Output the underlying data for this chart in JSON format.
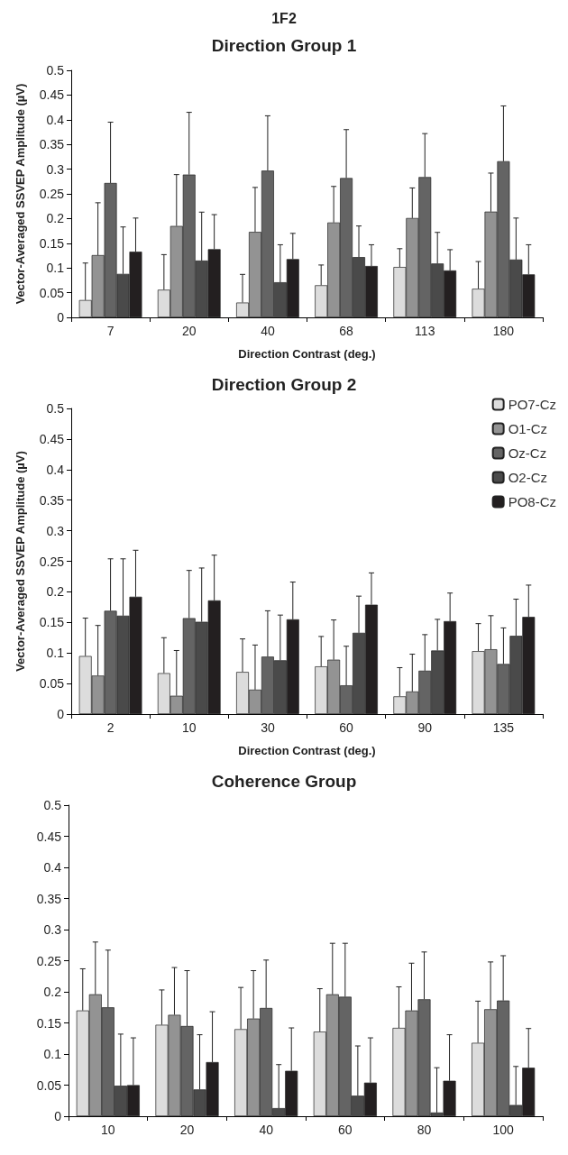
{
  "chart_data": [
    {
      "type": "bar",
      "title": "Direction Group 1",
      "annotations": [
        "1F2"
      ],
      "xlabel": "Direction Contrast (deg.)",
      "ylabel": "Vector-Averaged SSVEP Amplitude (µV)",
      "categories": [
        "7",
        "20",
        "40",
        "68",
        "113",
        "180"
      ],
      "ylim": [
        0,
        0.5
      ],
      "yticks": [
        0,
        0.05,
        0.1,
        0.15,
        0.2,
        0.25,
        0.3,
        0.35,
        0.4,
        0.45,
        0.5
      ],
      "grid": false,
      "legend": false,
      "series": [
        {
          "color": "#dcdcdc",
          "values": [
            0.035,
            0.056,
            0.03,
            0.065,
            0.102,
            0.058
          ],
          "errors": [
            [
              0.035,
              0.11
            ],
            [
              0.056,
              0.127
            ],
            [
              0.03,
              0.087
            ],
            [
              0.065,
              0.106
            ],
            [
              0.102,
              0.139
            ],
            [
              0.058,
              0.113
            ]
          ]
        },
        {
          "color": "#939393",
          "values": [
            0.126,
            0.185,
            0.173,
            0.192,
            0.201,
            0.214
          ],
          "errors": [
            [
              0.126,
              0.232
            ],
            [
              0.185,
              0.289
            ],
            [
              0.173,
              0.263
            ],
            [
              0.192,
              0.265
            ],
            [
              0.201,
              0.262
            ],
            [
              0.214,
              0.292
            ]
          ]
        },
        {
          "color": "#646464",
          "values": [
            0.272,
            0.289,
            0.297,
            0.282,
            0.284,
            0.316
          ],
          "errors": [
            [
              0.272,
              0.395
            ],
            [
              0.289,
              0.415
            ],
            [
              0.297,
              0.408
            ],
            [
              0.282,
              0.38
            ],
            [
              0.284,
              0.372
            ],
            [
              0.316,
              0.428
            ]
          ]
        },
        {
          "color": "#4a4a4a",
          "values": [
            0.088,
            0.115,
            0.071,
            0.122,
            0.109,
            0.117
          ],
          "errors": [
            [
              0.088,
              0.183
            ],
            [
              0.115,
              0.213
            ],
            [
              0.071,
              0.147
            ],
            [
              0.122,
              0.185
            ],
            [
              0.109,
              0.172
            ],
            [
              0.117,
              0.201
            ]
          ]
        },
        {
          "color": "#231f20",
          "values": [
            0.133,
            0.138,
            0.118,
            0.104,
            0.095,
            0.087
          ],
          "errors": [
            [
              0.133,
              0.201
            ],
            [
              0.138,
              0.208
            ],
            [
              0.118,
              0.17
            ],
            [
              0.104,
              0.147
            ],
            [
              0.095,
              0.137
            ],
            [
              0.087,
              0.147
            ]
          ]
        }
      ]
    },
    {
      "type": "bar",
      "title": "Direction Group 2",
      "xlabel": "Direction Contrast (deg.)",
      "ylabel": "Vector-Averaged SSVEP Amplitude (µV)",
      "categories": [
        "2",
        "10",
        "30",
        "60",
        "90",
        "135"
      ],
      "ylim": [
        0,
        0.5
      ],
      "yticks": [
        0,
        0.05,
        0.1,
        0.15,
        0.2,
        0.25,
        0.3,
        0.35,
        0.4,
        0.45,
        0.5
      ],
      "grid": false,
      "legend": "top right",
      "series": [
        {
          "name": "PO7-Cz",
          "color": "#dcdcdc",
          "values": [
            0.095,
            0.067,
            0.069,
            0.078,
            0.029,
            0.103
          ],
          "errors": [
            [
              0.095,
              0.157
            ],
            [
              0.067,
              0.125
            ],
            [
              0.069,
              0.123
            ],
            [
              0.078,
              0.127
            ],
            [
              0.029,
              0.076
            ],
            [
              0.103,
              0.148
            ]
          ]
        },
        {
          "name": "O1-Cz",
          "color": "#939393",
          "values": [
            0.063,
            0.03,
            0.04,
            0.089,
            0.037,
            0.106
          ],
          "errors": [
            [
              0.063,
              0.145
            ],
            [
              0.03,
              0.104
            ],
            [
              0.04,
              0.113
            ],
            [
              0.089,
              0.154
            ],
            [
              0.037,
              0.098
            ],
            [
              0.106,
              0.161
            ]
          ]
        },
        {
          "name": "Oz-Cz",
          "color": "#646464",
          "values": [
            0.169,
            0.157,
            0.094,
            0.047,
            0.071,
            0.082
          ],
          "errors": [
            [
              0.169,
              0.254
            ],
            [
              0.157,
              0.235
            ],
            [
              0.094,
              0.169
            ],
            [
              0.047,
              0.111
            ],
            [
              0.071,
              0.13
            ],
            [
              0.082,
              0.141
            ]
          ]
        },
        {
          "name": "O2-Cz",
          "color": "#4a4a4a",
          "values": [
            0.161,
            0.151,
            0.088,
            0.133,
            0.104,
            0.128
          ],
          "errors": [
            [
              0.161,
              0.254
            ],
            [
              0.151,
              0.239
            ],
            [
              0.088,
              0.162
            ],
            [
              0.133,
              0.193
            ],
            [
              0.104,
              0.155
            ],
            [
              0.128,
              0.188
            ]
          ]
        },
        {
          "name": "PO8-Cz",
          "color": "#231f20",
          "values": [
            0.192,
            0.186,
            0.155,
            0.179,
            0.152,
            0.159
          ],
          "errors": [
            [
              0.192,
              0.268
            ],
            [
              0.186,
              0.26
            ],
            [
              0.155,
              0.216
            ],
            [
              0.179,
              0.231
            ],
            [
              0.152,
              0.198
            ],
            [
              0.159,
              0.211
            ]
          ]
        }
      ]
    },
    {
      "type": "bar",
      "title": "Coherence Group",
      "categories": [
        "10",
        "20",
        "40",
        "60",
        "80",
        "100"
      ],
      "ylim": [
        0,
        0.5
      ],
      "yticks": [
        0,
        0.05,
        0.1,
        0.15,
        0.2,
        0.25,
        0.3,
        0.35,
        0.4,
        0.45,
        0.5
      ],
      "grid": false,
      "legend": false,
      "series": [
        {
          "color": "#dcdcdc",
          "values": [
            0.17,
            0.147,
            0.14,
            0.136,
            0.142,
            0.118
          ],
          "errors": [
            [
              0.17,
              0.237
            ],
            [
              0.147,
              0.203
            ],
            [
              0.14,
              0.207
            ],
            [
              0.136,
              0.205
            ],
            [
              0.142,
              0.208
            ],
            [
              0.118,
              0.185
            ]
          ]
        },
        {
          "color": "#939393",
          "values": [
            0.196,
            0.163,
            0.157,
            0.196,
            0.17,
            0.172
          ],
          "errors": [
            [
              0.196,
              0.28
            ],
            [
              0.163,
              0.239
            ],
            [
              0.157,
              0.234
            ],
            [
              0.196,
              0.278
            ],
            [
              0.17,
              0.246
            ],
            [
              0.172,
              0.248
            ]
          ]
        },
        {
          "color": "#646464",
          "values": [
            0.175,
            0.145,
            0.174,
            0.192,
            0.188,
            0.186
          ],
          "errors": [
            [
              0.175,
              0.267
            ],
            [
              0.145,
              0.234
            ],
            [
              0.174,
              0.251
            ],
            [
              0.192,
              0.278
            ],
            [
              0.188,
              0.264
            ],
            [
              0.186,
              0.258
            ]
          ]
        },
        {
          "color": "#4a4a4a",
          "values": [
            0.049,
            0.043,
            0.013,
            0.033,
            0.006,
            0.018
          ],
          "errors": [
            [
              0.049,
              0.132
            ],
            [
              0.043,
              0.131
            ],
            [
              0.013,
              0.083
            ],
            [
              0.033,
              0.113
            ],
            [
              0.006,
              0.078
            ],
            [
              0.018,
              0.08
            ]
          ]
        },
        {
          "color": "#231f20",
          "values": [
            0.05,
            0.087,
            0.073,
            0.054,
            0.057,
            0.078
          ],
          "errors": [
            [
              0.05,
              0.126
            ],
            [
              0.087,
              0.168
            ],
            [
              0.073,
              0.142
            ],
            [
              0.054,
              0.126
            ],
            [
              0.057,
              0.131
            ],
            [
              0.078,
              0.141
            ]
          ]
        }
      ]
    }
  ]
}
